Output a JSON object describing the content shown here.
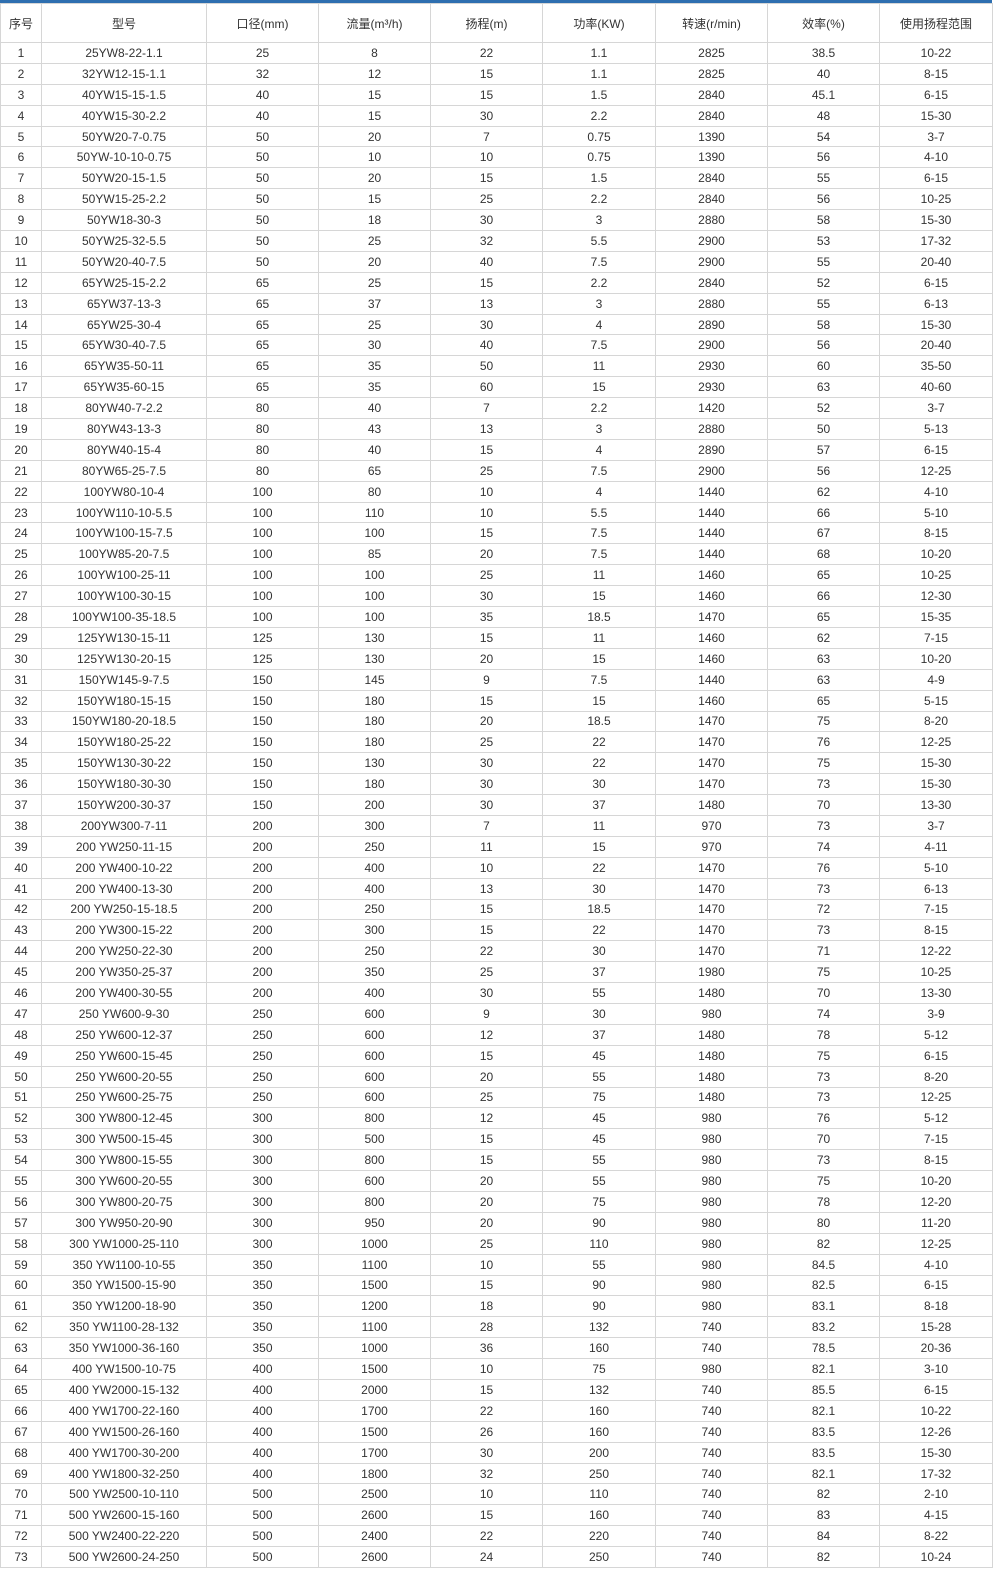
{
  "colors": {
    "accent": "#2e6fb0",
    "border": "#d6d6d6"
  },
  "headers": [
    "序号",
    "型号",
    "口径(mm)",
    "流量(m³/h)",
    "扬程(m)",
    "功率(KW)",
    "转速(r/min)",
    "效率(%)",
    "使用扬程范围"
  ],
  "rows": [
    [
      "1",
      "25YW8-22-1.1",
      "25",
      "8",
      "22",
      "1.1",
      "2825",
      "38.5",
      "10-22"
    ],
    [
      "2",
      "32YW12-15-1.1",
      "32",
      "12",
      "15",
      "1.1",
      "2825",
      "40",
      "8-15"
    ],
    [
      "3",
      "40YW15-15-1.5",
      "40",
      "15",
      "15",
      "1.5",
      "2840",
      "45.1",
      "6-15"
    ],
    [
      "4",
      "40YW15-30-2.2",
      "40",
      "15",
      "30",
      "2.2",
      "2840",
      "48",
      "15-30"
    ],
    [
      "5",
      "50YW20-7-0.75",
      "50",
      "20",
      "7",
      "0.75",
      "1390",
      "54",
      "3-7"
    ],
    [
      "6",
      "50YW-10-10-0.75",
      "50",
      "10",
      "10",
      "0.75",
      "1390",
      "56",
      "4-10"
    ],
    [
      "7",
      "50YW20-15-1.5",
      "50",
      "20",
      "15",
      "1.5",
      "2840",
      "55",
      "6-15"
    ],
    [
      "8",
      "50YW15-25-2.2",
      "50",
      "15",
      "25",
      "2.2",
      "2840",
      "56",
      "10-25"
    ],
    [
      "9",
      "50YW18-30-3",
      "50",
      "18",
      "30",
      "3",
      "2880",
      "58",
      "15-30"
    ],
    [
      "10",
      "50YW25-32-5.5",
      "50",
      "25",
      "32",
      "5.5",
      "2900",
      "53",
      "17-32"
    ],
    [
      "11",
      "50YW20-40-7.5",
      "50",
      "20",
      "40",
      "7.5",
      "2900",
      "55",
      "20-40"
    ],
    [
      "12",
      "65YW25-15-2.2",
      "65",
      "25",
      "15",
      "2.2",
      "2840",
      "52",
      "6-15"
    ],
    [
      "13",
      "65YW37-13-3",
      "65",
      "37",
      "13",
      "3",
      "2880",
      "55",
      "6-13"
    ],
    [
      "14",
      "65YW25-30-4",
      "65",
      "25",
      "30",
      "4",
      "2890",
      "58",
      "15-30"
    ],
    [
      "15",
      "65YW30-40-7.5",
      "65",
      "30",
      "40",
      "7.5",
      "2900",
      "56",
      "20-40"
    ],
    [
      "16",
      "65YW35-50-11",
      "65",
      "35",
      "50",
      "11",
      "2930",
      "60",
      "35-50"
    ],
    [
      "17",
      "65YW35-60-15",
      "65",
      "35",
      "60",
      "15",
      "2930",
      "63",
      "40-60"
    ],
    [
      "18",
      "80YW40-7-2.2",
      "80",
      "40",
      "7",
      "2.2",
      "1420",
      "52",
      "3-7"
    ],
    [
      "19",
      "80YW43-13-3",
      "80",
      "43",
      "13",
      "3",
      "2880",
      "50",
      "5-13"
    ],
    [
      "20",
      "80YW40-15-4",
      "80",
      "40",
      "15",
      "4",
      "2890",
      "57",
      "6-15"
    ],
    [
      "21",
      "80YW65-25-7.5",
      "80",
      "65",
      "25",
      "7.5",
      "2900",
      "56",
      "12-25"
    ],
    [
      "22",
      "100YW80-10-4",
      "100",
      "80",
      "10",
      "4",
      "1440",
      "62",
      "4-10"
    ],
    [
      "23",
      "100YW110-10-5.5",
      "100",
      "110",
      "10",
      "5.5",
      "1440",
      "66",
      "5-10"
    ],
    [
      "24",
      "100YW100-15-7.5",
      "100",
      "100",
      "15",
      "7.5",
      "1440",
      "67",
      "8-15"
    ],
    [
      "25",
      "100YW85-20-7.5",
      "100",
      "85",
      "20",
      "7.5",
      "1440",
      "68",
      "10-20"
    ],
    [
      "26",
      "100YW100-25-11",
      "100",
      "100",
      "25",
      "11",
      "1460",
      "65",
      "10-25"
    ],
    [
      "27",
      "100YW100-30-15",
      "100",
      "100",
      "30",
      "15",
      "1460",
      "66",
      "12-30"
    ],
    [
      "28",
      "100YW100-35-18.5",
      "100",
      "100",
      "35",
      "18.5",
      "1470",
      "65",
      "15-35"
    ],
    [
      "29",
      "125YW130-15-11",
      "125",
      "130",
      "15",
      "11",
      "1460",
      "62",
      "7-15"
    ],
    [
      "30",
      "125YW130-20-15",
      "125",
      "130",
      "20",
      "15",
      "1460",
      "63",
      "10-20"
    ],
    [
      "31",
      "150YW145-9-7.5",
      "150",
      "145",
      "9",
      "7.5",
      "1440",
      "63",
      "4-9"
    ],
    [
      "32",
      "150YW180-15-15",
      "150",
      "180",
      "15",
      "15",
      "1460",
      "65",
      "5-15"
    ],
    [
      "33",
      "150YW180-20-18.5",
      "150",
      "180",
      "20",
      "18.5",
      "1470",
      "75",
      "8-20"
    ],
    [
      "34",
      "150YW180-25-22",
      "150",
      "180",
      "25",
      "22",
      "1470",
      "76",
      "12-25"
    ],
    [
      "35",
      "150YW130-30-22",
      "150",
      "130",
      "30",
      "22",
      "1470",
      "75",
      "15-30"
    ],
    [
      "36",
      "150YW180-30-30",
      "150",
      "180",
      "30",
      "30",
      "1470",
      "73",
      "15-30"
    ],
    [
      "37",
      "150YW200-30-37",
      "150",
      "200",
      "30",
      "37",
      "1480",
      "70",
      "13-30"
    ],
    [
      "38",
      "200YW300-7-11",
      "200",
      "300",
      "7",
      "11",
      "970",
      "73",
      "3-7"
    ],
    [
      "39",
      "200 YW250-11-15",
      "200",
      "250",
      "11",
      "15",
      "970",
      "74",
      "4-11"
    ],
    [
      "40",
      "200 YW400-10-22",
      "200",
      "400",
      "10",
      "22",
      "1470",
      "76",
      "5-10"
    ],
    [
      "41",
      "200 YW400-13-30",
      "200",
      "400",
      "13",
      "30",
      "1470",
      "73",
      "6-13"
    ],
    [
      "42",
      "200 YW250-15-18.5",
      "200",
      "250",
      "15",
      "18.5",
      "1470",
      "72",
      "7-15"
    ],
    [
      "43",
      "200 YW300-15-22",
      "200",
      "300",
      "15",
      "22",
      "1470",
      "73",
      "8-15"
    ],
    [
      "44",
      "200 YW250-22-30",
      "200",
      "250",
      "22",
      "30",
      "1470",
      "71",
      "12-22"
    ],
    [
      "45",
      "200 YW350-25-37",
      "200",
      "350",
      "25",
      "37",
      "1980",
      "75",
      "10-25"
    ],
    [
      "46",
      "200 YW400-30-55",
      "200",
      "400",
      "30",
      "55",
      "1480",
      "70",
      "13-30"
    ],
    [
      "47",
      "250 YW600-9-30",
      "250",
      "600",
      "9",
      "30",
      "980",
      "74",
      "3-9"
    ],
    [
      "48",
      "250 YW600-12-37",
      "250",
      "600",
      "12",
      "37",
      "1480",
      "78",
      "5-12"
    ],
    [
      "49",
      "250 YW600-15-45",
      "250",
      "600",
      "15",
      "45",
      "1480",
      "75",
      "6-15"
    ],
    [
      "50",
      "250 YW600-20-55",
      "250",
      "600",
      "20",
      "55",
      "1480",
      "73",
      "8-20"
    ],
    [
      "51",
      "250 YW600-25-75",
      "250",
      "600",
      "25",
      "75",
      "1480",
      "73",
      "12-25"
    ],
    [
      "52",
      "300 YW800-12-45",
      "300",
      "800",
      "12",
      "45",
      "980",
      "76",
      "5-12"
    ],
    [
      "53",
      "300 YW500-15-45",
      "300",
      "500",
      "15",
      "45",
      "980",
      "70",
      "7-15"
    ],
    [
      "54",
      "300 YW800-15-55",
      "300",
      "800",
      "15",
      "55",
      "980",
      "73",
      "8-15"
    ],
    [
      "55",
      "300 YW600-20-55",
      "300",
      "600",
      "20",
      "55",
      "980",
      "75",
      "10-20"
    ],
    [
      "56",
      "300 YW800-20-75",
      "300",
      "800",
      "20",
      "75",
      "980",
      "78",
      "12-20"
    ],
    [
      "57",
      "300 YW950-20-90",
      "300",
      "950",
      "20",
      "90",
      "980",
      "80",
      "11-20"
    ],
    [
      "58",
      "300 YW1000-25-110",
      "300",
      "1000",
      "25",
      "110",
      "980",
      "82",
      "12-25"
    ],
    [
      "59",
      "350 YW1100-10-55",
      "350",
      "1100",
      "10",
      "55",
      "980",
      "84.5",
      "4-10"
    ],
    [
      "60",
      "350 YW1500-15-90",
      "350",
      "1500",
      "15",
      "90",
      "980",
      "82.5",
      "6-15"
    ],
    [
      "61",
      "350 YW1200-18-90",
      "350",
      "1200",
      "18",
      "90",
      "980",
      "83.1",
      "8-18"
    ],
    [
      "62",
      "350 YW1100-28-132",
      "350",
      "1100",
      "28",
      "132",
      "740",
      "83.2",
      "15-28"
    ],
    [
      "63",
      "350 YW1000-36-160",
      "350",
      "1000",
      "36",
      "160",
      "740",
      "78.5",
      "20-36"
    ],
    [
      "64",
      "400 YW1500-10-75",
      "400",
      "1500",
      "10",
      "75",
      "980",
      "82.1",
      "3-10"
    ],
    [
      "65",
      "400 YW2000-15-132",
      "400",
      "2000",
      "15",
      "132",
      "740",
      "85.5",
      "6-15"
    ],
    [
      "66",
      "400 YW1700-22-160",
      "400",
      "1700",
      "22",
      "160",
      "740",
      "82.1",
      "10-22"
    ],
    [
      "67",
      "400 YW1500-26-160",
      "400",
      "1500",
      "26",
      "160",
      "740",
      "83.5",
      "12-26"
    ],
    [
      "68",
      "400 YW1700-30-200",
      "400",
      "1700",
      "30",
      "200",
      "740",
      "83.5",
      "15-30"
    ],
    [
      "69",
      "400 YW1800-32-250",
      "400",
      "1800",
      "32",
      "250",
      "740",
      "82.1",
      "17-32"
    ],
    [
      "70",
      "500 YW2500-10-110",
      "500",
      "2500",
      "10",
      "110",
      "740",
      "82",
      "2-10"
    ],
    [
      "71",
      "500 YW2600-15-160",
      "500",
      "2600",
      "15",
      "160",
      "740",
      "83",
      "4-15"
    ],
    [
      "72",
      "500 YW2400-22-220",
      "500",
      "2400",
      "22",
      "220",
      "740",
      "84",
      "8-22"
    ],
    [
      "73",
      "500 YW2600-24-250",
      "500",
      "2600",
      "24",
      "250",
      "740",
      "82",
      "10-24"
    ]
  ]
}
